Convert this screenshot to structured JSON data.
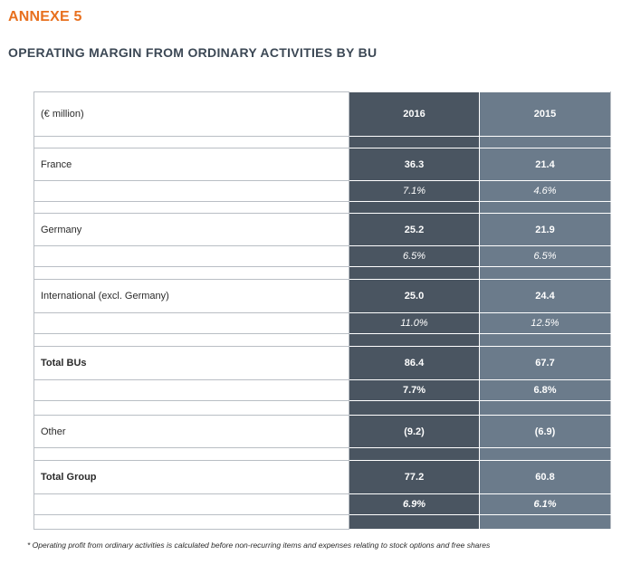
{
  "annexe_title": "ANNEXE 5",
  "subtitle": "OPERATING MARGIN FROM ORDINARY ACTIVITIES BY BU",
  "table": {
    "unit_label": "(€ million)",
    "col_2016": "2016",
    "col_2015": "2015",
    "france": {
      "label": "France",
      "v2016": "36.3",
      "v2015": "21.4",
      "p2016": "7.1%",
      "p2015": "4.6%"
    },
    "germany": {
      "label": "Germany",
      "v2016": "25.2",
      "v2015": "21.9",
      "p2016": "6.5%",
      "p2015": "6.5%"
    },
    "international": {
      "label": "International (excl. Germany)",
      "v2016": "25.0",
      "v2015": "24.4",
      "p2016": "11.0%",
      "p2015": "12.5%"
    },
    "total_bus": {
      "label": "Total BUs",
      "v2016": "86.4",
      "v2015": "67.7",
      "p2016": "7.7%",
      "p2015": "6.8%"
    },
    "other": {
      "label": "Other",
      "v2016": "(9.2)",
      "v2015": "(6.9)"
    },
    "total_group": {
      "label": "Total Group",
      "v2016": "77.2",
      "v2015": "60.8",
      "p2016": "6.9%",
      "p2015": "6.1%"
    }
  },
  "footnote": "* Operating profit from ordinary activities is calculated before non-recurring items and expenses relating to stock options and free shares"
}
